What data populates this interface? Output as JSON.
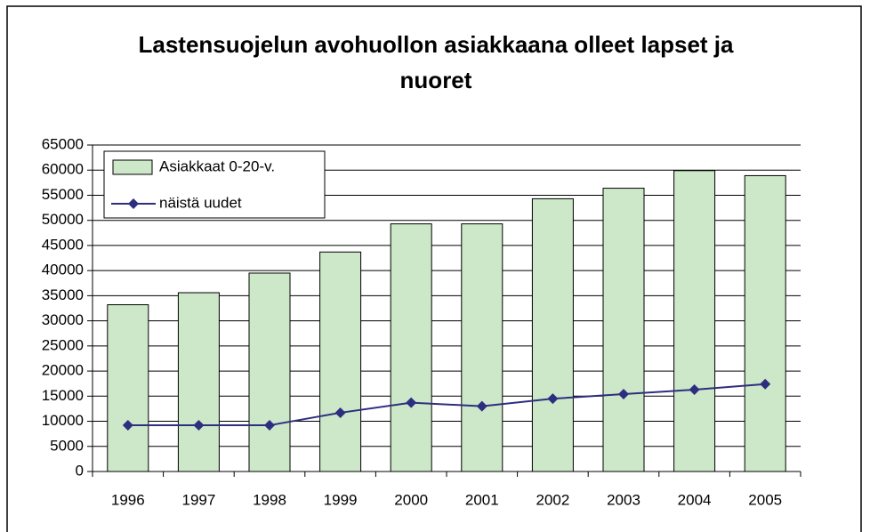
{
  "chart_data": {
    "type": "bar",
    "title": "Lastensuojelun avohuollon asiakkaana olleet lapset ja nuoret",
    "categories": [
      "1996",
      "1997",
      "1998",
      "1999",
      "2000",
      "2001",
      "2002",
      "2003",
      "2004",
      "2005"
    ],
    "series": [
      {
        "name": "Asiakkaat 0-20-v.",
        "type": "bar",
        "color": "#cce8c8",
        "values": [
          33200,
          35600,
          39500,
          43700,
          49300,
          49300,
          54300,
          56400,
          59900,
          58900
        ]
      },
      {
        "name": "näistä uudet",
        "type": "line",
        "color": "#2e2e80",
        "values": [
          9200,
          9200,
          9200,
          11700,
          13700,
          13000,
          14500,
          15400,
          16300,
          17400
        ]
      }
    ],
    "ylim": [
      0,
      65000
    ],
    "yticks": [
      0,
      5000,
      10000,
      15000,
      20000,
      25000,
      30000,
      35000,
      40000,
      45000,
      50000,
      55000,
      60000,
      65000
    ],
    "grid": true,
    "legend": "top-left"
  }
}
